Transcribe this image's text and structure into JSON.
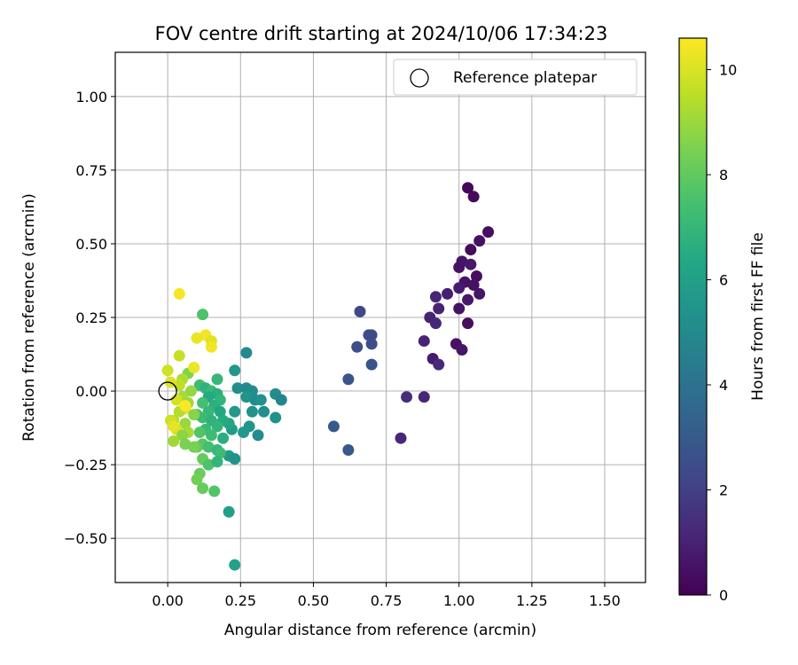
{
  "chart_data": {
    "type": "scatter",
    "title": "FOV centre drift starting at 2024/10/06 17:34:23",
    "xlabel": "Angular distance from reference (arcmin)",
    "ylabel": "Rotation from reference (arcmin)",
    "xlim": [
      -0.18,
      1.64
    ],
    "ylim": [
      -0.65,
      1.15
    ],
    "xticks": [
      "0.00",
      "0.25",
      "0.50",
      "0.75",
      "1.00",
      "1.25",
      "1.50"
    ],
    "xtick_values": [
      0,
      0.25,
      0.5,
      0.75,
      1.0,
      1.25,
      1.5
    ],
    "yticks": [
      "−0.50",
      "−0.25",
      "0.00",
      "0.25",
      "0.50",
      "0.75",
      "1.00"
    ],
    "ytick_values": [
      -0.5,
      -0.25,
      0,
      0.25,
      0.5,
      0.75,
      1.0
    ],
    "grid": true,
    "legend": {
      "label": "Reference platepar",
      "placement": "top-right"
    },
    "reference_point": {
      "x": 0.0,
      "y": 0.0
    },
    "colorbar": {
      "label": "Hours from first FF file",
      "colormap": "viridis",
      "range": [
        0,
        10.6
      ],
      "ticks": [
        "0",
        "2",
        "4",
        "6",
        "8",
        "10"
      ],
      "tick_values": [
        0,
        2,
        4,
        6,
        8,
        10
      ]
    },
    "points": [
      {
        "x": 1.03,
        "y": 0.69,
        "h": 0.2
      },
      {
        "x": 1.05,
        "y": 0.66,
        "h": 0.3
      },
      {
        "x": 1.1,
        "y": 0.54,
        "h": 0.4
      },
      {
        "x": 1.07,
        "y": 0.51,
        "h": 0.5
      },
      {
        "x": 1.04,
        "y": 0.48,
        "h": 0.3
      },
      {
        "x": 1.01,
        "y": 0.44,
        "h": 0.6
      },
      {
        "x": 1.0,
        "y": 0.42,
        "h": 0.5
      },
      {
        "x": 1.04,
        "y": 0.43,
        "h": 0.7
      },
      {
        "x": 1.06,
        "y": 0.39,
        "h": 0.4
      },
      {
        "x": 1.02,
        "y": 0.37,
        "h": 0.6
      },
      {
        "x": 1.05,
        "y": 0.36,
        "h": 0.5
      },
      {
        "x": 1.0,
        "y": 0.35,
        "h": 0.8
      },
      {
        "x": 0.96,
        "y": 0.33,
        "h": 0.9
      },
      {
        "x": 0.92,
        "y": 0.32,
        "h": 1.1
      },
      {
        "x": 1.07,
        "y": 0.33,
        "h": 0.6
      },
      {
        "x": 1.03,
        "y": 0.31,
        "h": 0.7
      },
      {
        "x": 0.93,
        "y": 0.28,
        "h": 1.0
      },
      {
        "x": 1.0,
        "y": 0.28,
        "h": 0.5
      },
      {
        "x": 0.9,
        "y": 0.25,
        "h": 1.0
      },
      {
        "x": 0.92,
        "y": 0.23,
        "h": 1.2
      },
      {
        "x": 1.03,
        "y": 0.23,
        "h": 0.4
      },
      {
        "x": 0.88,
        "y": 0.17,
        "h": 1.0
      },
      {
        "x": 0.99,
        "y": 0.16,
        "h": 0.5
      },
      {
        "x": 1.01,
        "y": 0.14,
        "h": 0.6
      },
      {
        "x": 0.91,
        "y": 0.11,
        "h": 0.8
      },
      {
        "x": 0.93,
        "y": 0.09,
        "h": 1.3
      },
      {
        "x": 0.82,
        "y": -0.02,
        "h": 1.4
      },
      {
        "x": 0.88,
        "y": -0.02,
        "h": 1.1
      },
      {
        "x": 0.8,
        "y": -0.16,
        "h": 1.2
      },
      {
        "x": 0.66,
        "y": 0.27,
        "h": 2.3
      },
      {
        "x": 0.69,
        "y": 0.19,
        "h": 2.6
      },
      {
        "x": 0.7,
        "y": 0.19,
        "h": 2.4
      },
      {
        "x": 0.7,
        "y": 0.16,
        "h": 2.5
      },
      {
        "x": 0.65,
        "y": 0.15,
        "h": 2.5
      },
      {
        "x": 0.7,
        "y": 0.09,
        "h": 2.7
      },
      {
        "x": 0.62,
        "y": 0.04,
        "h": 2.8
      },
      {
        "x": 0.57,
        "y": -0.12,
        "h": 3.0
      },
      {
        "x": 0.62,
        "y": -0.2,
        "h": 2.9
      },
      {
        "x": 0.27,
        "y": 0.13,
        "h": 5.0
      },
      {
        "x": 0.23,
        "y": 0.07,
        "h": 5.6
      },
      {
        "x": 0.24,
        "y": 0.01,
        "h": 5.2
      },
      {
        "x": 0.27,
        "y": 0.01,
        "h": 4.9
      },
      {
        "x": 0.29,
        "y": 0.0,
        "h": 5.1
      },
      {
        "x": 0.27,
        "y": -0.02,
        "h": 5.5
      },
      {
        "x": 0.3,
        "y": -0.03,
        "h": 5.0
      },
      {
        "x": 0.32,
        "y": -0.03,
        "h": 5.3
      },
      {
        "x": 0.37,
        "y": -0.01,
        "h": 5.1
      },
      {
        "x": 0.39,
        "y": -0.03,
        "h": 4.8
      },
      {
        "x": 0.33,
        "y": -0.07,
        "h": 5.2
      },
      {
        "x": 0.29,
        "y": -0.07,
        "h": 5.4
      },
      {
        "x": 0.23,
        "y": -0.07,
        "h": 5.6
      },
      {
        "x": 0.37,
        "y": -0.09,
        "h": 5.3
      },
      {
        "x": 0.28,
        "y": -0.12,
        "h": 5.5
      },
      {
        "x": 0.31,
        "y": -0.15,
        "h": 5.1
      },
      {
        "x": 0.26,
        "y": -0.14,
        "h": 5.6
      },
      {
        "x": 0.22,
        "y": -0.13,
        "h": 5.8
      },
      {
        "x": 0.21,
        "y": -0.11,
        "h": 6.2
      },
      {
        "x": 0.21,
        "y": -0.22,
        "h": 5.7
      },
      {
        "x": 0.23,
        "y": -0.23,
        "h": 5.4
      },
      {
        "x": 0.21,
        "y": -0.41,
        "h": 6.0
      },
      {
        "x": 0.23,
        "y": -0.59,
        "h": 6.1
      },
      {
        "x": 0.12,
        "y": 0.26,
        "h": 7.6
      },
      {
        "x": 0.17,
        "y": 0.04,
        "h": 7.0
      },
      {
        "x": 0.11,
        "y": 0.02,
        "h": 7.3
      },
      {
        "x": 0.13,
        "y": 0.01,
        "h": 6.8
      },
      {
        "x": 0.15,
        "y": 0.0,
        "h": 7.1
      },
      {
        "x": 0.17,
        "y": -0.01,
        "h": 6.6
      },
      {
        "x": 0.14,
        "y": -0.02,
        "h": 6.4
      },
      {
        "x": 0.18,
        "y": -0.03,
        "h": 6.9
      },
      {
        "x": 0.12,
        "y": -0.04,
        "h": 7.4
      },
      {
        "x": 0.16,
        "y": -0.05,
        "h": 6.7
      },
      {
        "x": 0.14,
        "y": -0.07,
        "h": 7.0
      },
      {
        "x": 0.18,
        "y": -0.07,
        "h": 6.3
      },
      {
        "x": 0.1,
        "y": -0.08,
        "h": 7.5
      },
      {
        "x": 0.12,
        "y": -0.09,
        "h": 7.2
      },
      {
        "x": 0.15,
        "y": -0.1,
        "h": 6.8
      },
      {
        "x": 0.19,
        "y": -0.1,
        "h": 6.5
      },
      {
        "x": 0.17,
        "y": -0.12,
        "h": 6.9
      },
      {
        "x": 0.13,
        "y": -0.13,
        "h": 7.1
      },
      {
        "x": 0.11,
        "y": -0.14,
        "h": 7.7
      },
      {
        "x": 0.15,
        "y": -0.15,
        "h": 7.3
      },
      {
        "x": 0.19,
        "y": -0.16,
        "h": 6.6
      },
      {
        "x": 0.12,
        "y": -0.18,
        "h": 7.8
      },
      {
        "x": 0.1,
        "y": -0.19,
        "h": 8.0
      },
      {
        "x": 0.14,
        "y": -0.19,
        "h": 7.4
      },
      {
        "x": 0.17,
        "y": -0.2,
        "h": 7.0
      },
      {
        "x": 0.18,
        "y": -0.21,
        "h": 7.2
      },
      {
        "x": 0.12,
        "y": -0.23,
        "h": 8.1
      },
      {
        "x": 0.14,
        "y": -0.25,
        "h": 7.6
      },
      {
        "x": 0.17,
        "y": -0.24,
        "h": 6.9
      },
      {
        "x": 0.11,
        "y": -0.28,
        "h": 8.2
      },
      {
        "x": 0.1,
        "y": -0.3,
        "h": 8.3
      },
      {
        "x": 0.12,
        "y": -0.33,
        "h": 8.1
      },
      {
        "x": 0.16,
        "y": -0.34,
        "h": 7.7
      },
      {
        "x": 0.07,
        "y": 0.06,
        "h": 8.6
      },
      {
        "x": 0.05,
        "y": 0.04,
        "h": 9.3
      },
      {
        "x": 0.04,
        "y": 0.02,
        "h": 9.6
      },
      {
        "x": 0.08,
        "y": 0.0,
        "h": 8.9
      },
      {
        "x": 0.05,
        "y": -0.02,
        "h": 9.2
      },
      {
        "x": 0.03,
        "y": -0.03,
        "h": 9.9
      },
      {
        "x": 0.07,
        "y": -0.04,
        "h": 9.1
      },
      {
        "x": 0.06,
        "y": -0.06,
        "h": 10.2
      },
      {
        "x": 0.04,
        "y": -0.07,
        "h": 9.4
      },
      {
        "x": 0.09,
        "y": -0.08,
        "h": 8.7
      },
      {
        "x": 0.02,
        "y": -0.1,
        "h": 9.5
      },
      {
        "x": 0.06,
        "y": -0.11,
        "h": 9.0
      },
      {
        "x": 0.03,
        "y": -0.13,
        "h": 10.0
      },
      {
        "x": 0.07,
        "y": -0.14,
        "h": 9.2
      },
      {
        "x": 0.05,
        "y": -0.15,
        "h": 8.8
      },
      {
        "x": 0.02,
        "y": -0.17,
        "h": 9.1
      },
      {
        "x": 0.06,
        "y": -0.18,
        "h": 8.5
      },
      {
        "x": 0.09,
        "y": -0.19,
        "h": 8.4
      },
      {
        "x": 0.04,
        "y": 0.33,
        "h": 10.5
      },
      {
        "x": 0.13,
        "y": 0.19,
        "h": 10.4
      },
      {
        "x": 0.1,
        "y": 0.18,
        "h": 10.3
      },
      {
        "x": 0.15,
        "y": 0.17,
        "h": 10.1
      },
      {
        "x": 0.15,
        "y": 0.15,
        "h": 10.4
      },
      {
        "x": 0.04,
        "y": 0.12,
        "h": 9.7
      },
      {
        "x": 0.09,
        "y": 0.08,
        "h": 10.3
      },
      {
        "x": 0.0,
        "y": 0.07,
        "h": 9.8
      },
      {
        "x": 0.01,
        "y": 0.03,
        "h": 10.1
      },
      {
        "x": 0.01,
        "y": -0.1,
        "h": 9.8
      },
      {
        "x": 0.02,
        "y": -0.12,
        "h": 10.2
      },
      {
        "x": 0.06,
        "y": -0.05,
        "h": 10.6
      }
    ]
  }
}
